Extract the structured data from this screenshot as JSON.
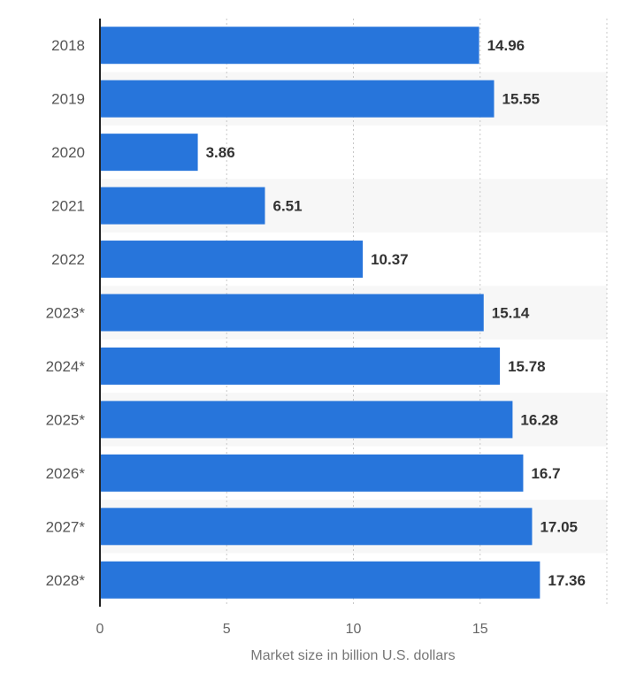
{
  "chart_data": {
    "type": "bar",
    "orientation": "horizontal",
    "categories": [
      "2018",
      "2019",
      "2020",
      "2021",
      "2022",
      "2023*",
      "2024*",
      "2025*",
      "2026*",
      "2027*",
      "2028*"
    ],
    "values": [
      14.96,
      15.55,
      3.86,
      6.51,
      10.37,
      15.14,
      15.78,
      16.28,
      16.7,
      17.05,
      17.36
    ],
    "value_labels": [
      "14.96",
      "15.55",
      "3.86",
      "6.51",
      "10.37",
      "15.14",
      "15.78",
      "16.28",
      "16.7",
      "17.05",
      "17.36"
    ],
    "x_ticks": [
      "0",
      "5",
      "10",
      "15"
    ],
    "xlabel": "Market size in billion U.S. dollars",
    "ylabel": "",
    "xlim": [
      0,
      20
    ],
    "grid": true,
    "bar_color": "#2775db",
    "band_color": "#f7f7f7"
  }
}
